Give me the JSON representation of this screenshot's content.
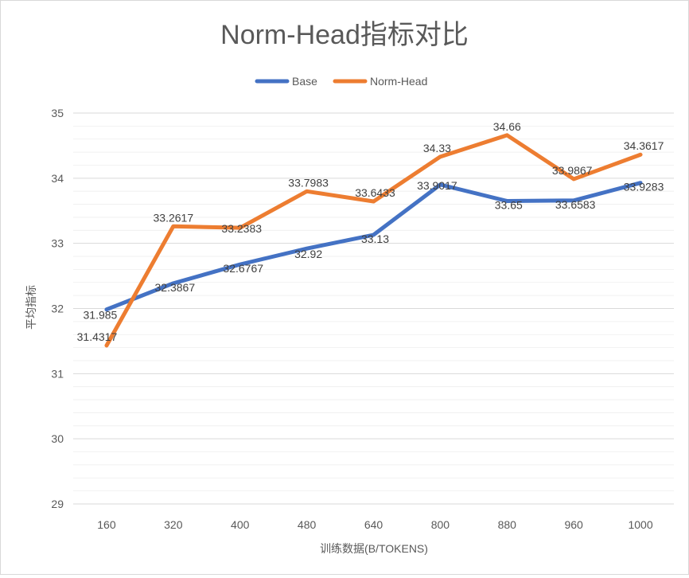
{
  "chart_data": {
    "type": "line",
    "title": "Norm-Head指标对比",
    "xlabel": "训练数据(B/TOKENS)",
    "ylabel": "平均指标",
    "categories": [
      "160",
      "320",
      "400",
      "480",
      "640",
      "800",
      "880",
      "960",
      "1000"
    ],
    "ylim": [
      29,
      35
    ],
    "yticks": [
      "29",
      "30",
      "31",
      "32",
      "33",
      "34",
      "35"
    ],
    "grid": "horizontal major and minor",
    "legend_position": "top-center",
    "series": [
      {
        "name": "Base",
        "color": "#4472C4",
        "values": [
          31.985,
          32.3867,
          32.6767,
          32.92,
          33.13,
          33.9017,
          33.65,
          33.6583,
          33.9283
        ],
        "labels": [
          "31.985",
          "32.3867",
          "32.6767",
          "32.92",
          "33.13",
          "33.9017",
          "33.65",
          "33.6583",
          "33.9283"
        ]
      },
      {
        "name": "Norm-Head",
        "color": "#ED7D31",
        "values": [
          31.4317,
          33.2617,
          33.2383,
          33.7983,
          33.6433,
          34.33,
          34.66,
          33.9867,
          34.3617
        ],
        "labels": [
          "31.4317",
          "33.2617",
          "33.2383",
          "33.7983",
          "33.6433",
          "34.33",
          "34.66",
          "33.9867",
          "34.3617"
        ]
      }
    ]
  }
}
